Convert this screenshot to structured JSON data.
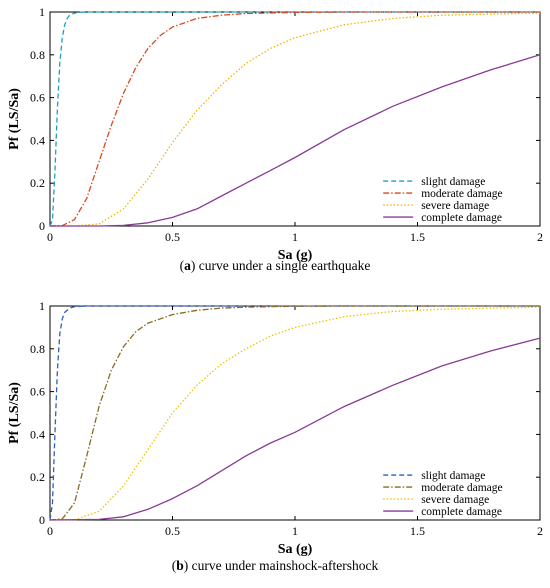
{
  "chart_data": [
    {
      "type": "line",
      "caption_letter": "a",
      "caption_text": " curve under a single earthquake",
      "xlabel": "Sa (g)",
      "ylabel": "Pf (LS/Sa)",
      "xlim": [
        0,
        2
      ],
      "ylim": [
        0,
        1
      ],
      "xticks": [
        "0",
        "0.5",
        "1",
        "1.5",
        "2"
      ],
      "yticks": [
        "0",
        "0.2",
        "0.4",
        "0.6",
        "0.8",
        "1"
      ],
      "grid": false,
      "legend_position": "bottom-right",
      "series": [
        {
          "name": "slight damage",
          "color": "#1f9fbf",
          "dash": "5,3",
          "x": [
            0,
            0.01,
            0.02,
            0.03,
            0.04,
            0.05,
            0.06,
            0.07,
            0.08,
            0.1,
            0.12,
            0.15,
            0.2,
            2.0
          ],
          "y": [
            0,
            0.03,
            0.25,
            0.55,
            0.76,
            0.88,
            0.94,
            0.97,
            0.985,
            0.995,
            0.999,
            1.0,
            1.0,
            1.0
          ]
        },
        {
          "name": "moderate damage",
          "color": "#d9481f",
          "dash": "6,2,1.5,2",
          "x": [
            0,
            0.05,
            0.1,
            0.15,
            0.2,
            0.25,
            0.3,
            0.35,
            0.4,
            0.45,
            0.5,
            0.6,
            0.7,
            0.8,
            1.0,
            1.2,
            2.0
          ],
          "y": [
            0,
            0.002,
            0.03,
            0.13,
            0.3,
            0.47,
            0.62,
            0.74,
            0.83,
            0.89,
            0.93,
            0.97,
            0.985,
            0.993,
            0.998,
            1.0,
            1.0
          ]
        },
        {
          "name": "severe damage",
          "color": "#f2b600",
          "dash": "1.5,2",
          "x": [
            0,
            0.1,
            0.2,
            0.3,
            0.4,
            0.5,
            0.6,
            0.7,
            0.8,
            0.9,
            1.0,
            1.2,
            1.4,
            1.6,
            1.8,
            2.0
          ],
          "y": [
            0,
            0.0,
            0.01,
            0.08,
            0.22,
            0.39,
            0.54,
            0.66,
            0.76,
            0.83,
            0.88,
            0.94,
            0.97,
            0.985,
            0.99,
            0.995
          ]
        },
        {
          "name": "complete damage",
          "color": "#8a3a96",
          "dash": "",
          "x": [
            0,
            0.2,
            0.3,
            0.4,
            0.5,
            0.6,
            0.7,
            0.8,
            0.9,
            1.0,
            1.2,
            1.4,
            1.6,
            1.8,
            2.0
          ],
          "y": [
            0,
            0.0,
            0.003,
            0.015,
            0.04,
            0.08,
            0.14,
            0.2,
            0.26,
            0.32,
            0.45,
            0.56,
            0.65,
            0.73,
            0.8
          ]
        }
      ]
    },
    {
      "type": "line",
      "caption_letter": "b",
      "caption_text": " curve under mainshock-aftershock",
      "xlabel": "Sa (g)",
      "ylabel": "Pf (LS/Sa)",
      "xlim": [
        0,
        2
      ],
      "ylim": [
        0,
        1
      ],
      "xticks": [
        "0",
        "0.5",
        "1",
        "1.5",
        "2"
      ],
      "yticks": [
        "0",
        "0.2",
        "0.4",
        "0.6",
        "0.8",
        "1"
      ],
      "grid": false,
      "legend_position": "bottom-right",
      "series": [
        {
          "name": "slight damage",
          "color": "#2f5fbf",
          "dash": "5,3",
          "x": [
            0,
            0.01,
            0.02,
            0.03,
            0.04,
            0.05,
            0.06,
            0.08,
            0.1,
            0.15,
            2.0
          ],
          "y": [
            0,
            0.08,
            0.4,
            0.7,
            0.87,
            0.94,
            0.97,
            0.99,
            0.997,
            1.0,
            1.0
          ]
        },
        {
          "name": "moderate damage",
          "color": "#8a6a1f",
          "dash": "6,2,1.5,2",
          "x": [
            0,
            0.05,
            0.1,
            0.15,
            0.2,
            0.25,
            0.3,
            0.35,
            0.4,
            0.5,
            0.6,
            0.7,
            0.8,
            1.0,
            1.2,
            2.0
          ],
          "y": [
            0,
            0.005,
            0.08,
            0.3,
            0.53,
            0.7,
            0.81,
            0.88,
            0.92,
            0.96,
            0.98,
            0.99,
            0.995,
            0.999,
            1.0,
            1.0
          ]
        },
        {
          "name": "severe damage",
          "color": "#f2c200",
          "dash": "1.5,2",
          "x": [
            0,
            0.1,
            0.2,
            0.3,
            0.4,
            0.5,
            0.6,
            0.7,
            0.8,
            0.9,
            1.0,
            1.2,
            1.4,
            1.6,
            1.8,
            2.0
          ],
          "y": [
            0,
            0.0,
            0.04,
            0.16,
            0.33,
            0.5,
            0.63,
            0.73,
            0.8,
            0.86,
            0.9,
            0.95,
            0.975,
            0.985,
            0.99,
            0.995
          ]
        },
        {
          "name": "complete damage",
          "color": "#8a3a96",
          "dash": "",
          "x": [
            0,
            0.2,
            0.3,
            0.4,
            0.5,
            0.6,
            0.7,
            0.8,
            0.9,
            1.0,
            1.2,
            1.4,
            1.6,
            1.8,
            2.0
          ],
          "y": [
            0,
            0.003,
            0.015,
            0.05,
            0.1,
            0.16,
            0.23,
            0.3,
            0.36,
            0.41,
            0.53,
            0.63,
            0.72,
            0.79,
            0.85
          ]
        }
      ]
    }
  ]
}
